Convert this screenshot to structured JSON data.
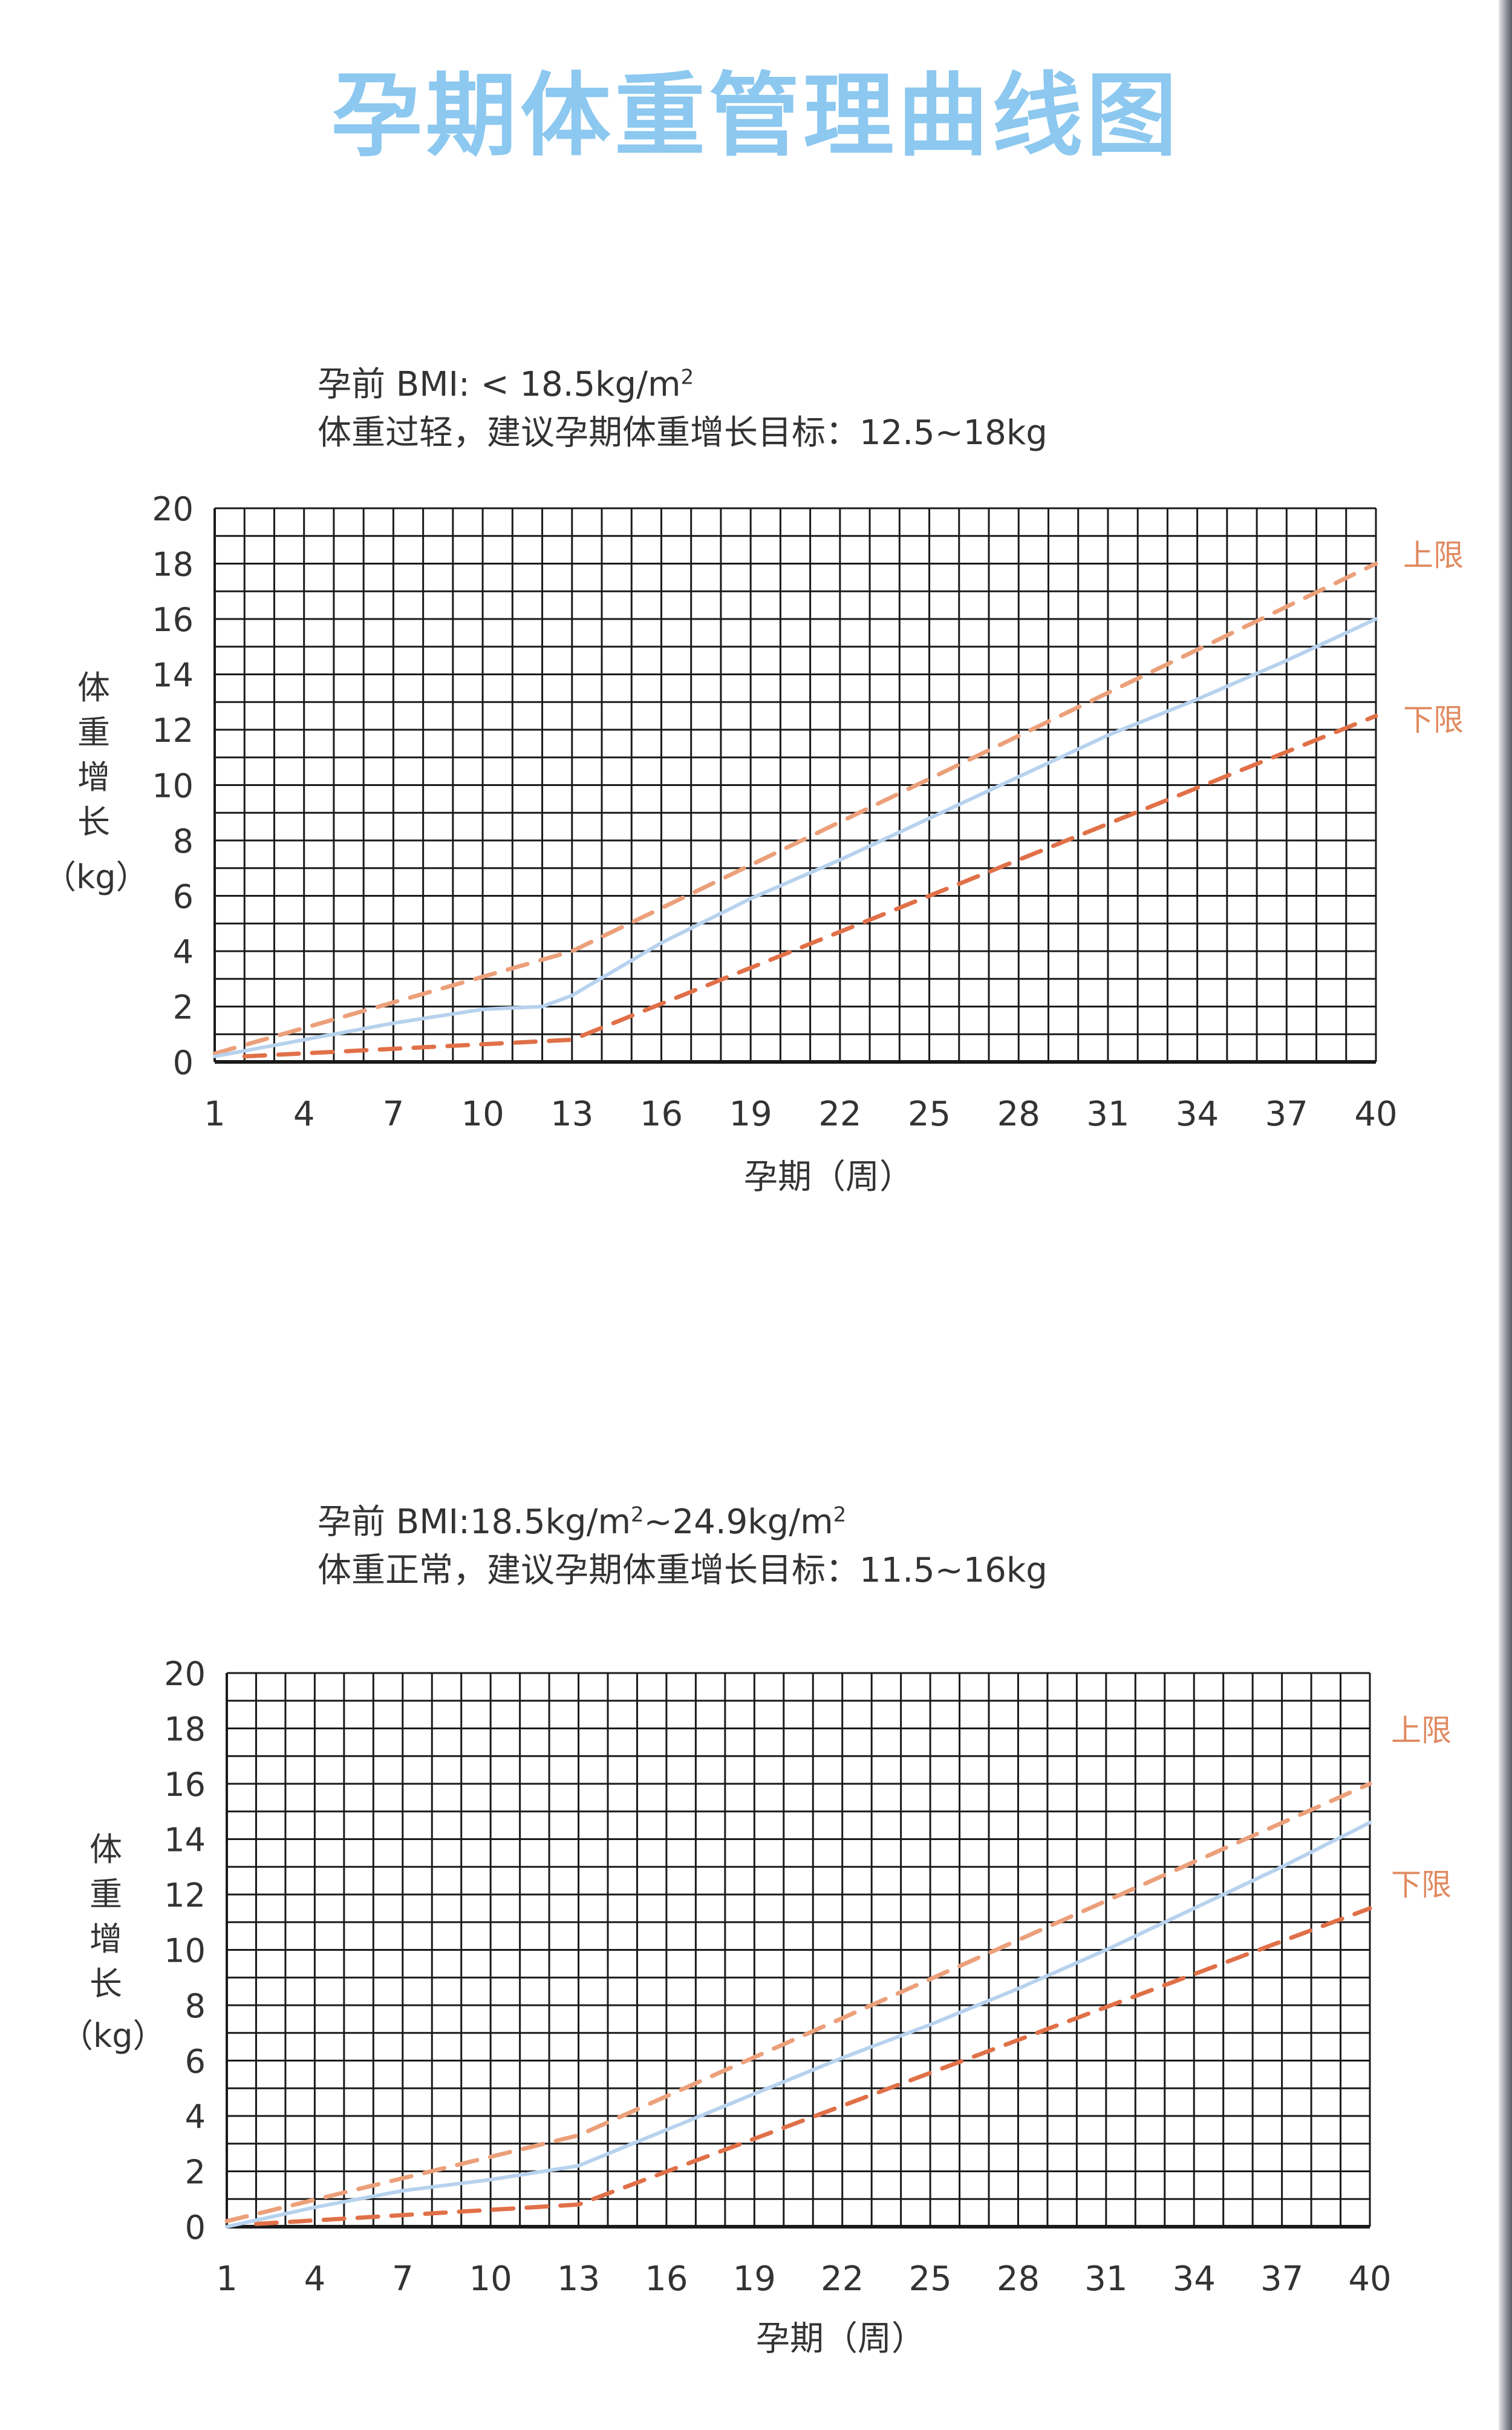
{
  "page": {
    "title": "孕期体重管理曲线图"
  },
  "charts": [
    {
      "note_bmi_prefix": "孕前 BMI: < 18.5kg/m",
      "note_bmi_sup": "2",
      "note_bmi_suffix": "",
      "note_line2": "体重过轻，建议孕期体重增长目标：12.5~18kg",
      "ylabel": "体重增长",
      "yunit": "（kg）",
      "xlabel": "孕期（周）",
      "upper_label": "上限",
      "lower_label": "下限"
    },
    {
      "note_bmi_prefix": "孕前 BMI:18.5kg/m",
      "note_bmi_sup": "2",
      "note_bmi_suffix": "~24.9kg/m",
      "note_bmi_sup2": "2",
      "note_line2": "体重正常，建议孕期体重增长目标：11.5~16kg",
      "ylabel": "体重增长",
      "yunit": "（kg）",
      "xlabel": "孕期（周）",
      "upper_label": "上限",
      "lower_label": "下限"
    }
  ],
  "colors": {
    "grid": "#1a1a1a",
    "upper": "#eba07a",
    "lower": "#e07048",
    "curve": "#b7d2ee",
    "title": "#8cc8ef"
  },
  "chart_data": [
    {
      "type": "line",
      "title": "孕前 BMI: < 18.5kg/m2",
      "xlabel": "孕期（周）",
      "ylabel": "体重增长（kg）",
      "xlim": [
        1,
        40
      ],
      "ylim": [
        0,
        20
      ],
      "x_ticks": [
        1,
        4,
        7,
        10,
        13,
        16,
        19,
        22,
        25,
        28,
        31,
        34,
        37,
        40
      ],
      "y_ticks": [
        0,
        2,
        4,
        6,
        8,
        10,
        12,
        14,
        16,
        18,
        20
      ],
      "grid": true,
      "series": [
        {
          "name": "上限",
          "style": "dashed",
          "x": [
            1,
            13,
            40
          ],
          "y": [
            0.3,
            4.0,
            18.0
          ]
        },
        {
          "name": "下限",
          "style": "dashed",
          "x": [
            2,
            13,
            40
          ],
          "y": [
            0.2,
            0.8,
            12.5
          ]
        },
        {
          "name": "",
          "style": "solid",
          "x": [
            1,
            4,
            7,
            10,
            12,
            13,
            16,
            19,
            22,
            25,
            28,
            31,
            34,
            37,
            40
          ],
          "y": [
            0.2,
            0.8,
            1.4,
            1.9,
            2.0,
            2.4,
            4.3,
            5.9,
            7.3,
            8.8,
            10.3,
            11.8,
            13.1,
            14.5,
            16.0
          ]
        }
      ]
    },
    {
      "type": "line",
      "title": "孕前 BMI:18.5kg/m2~24.9kg/m2",
      "xlabel": "孕期（周）",
      "ylabel": "体重增长（kg）",
      "xlim": [
        1,
        40
      ],
      "ylim": [
        0,
        20
      ],
      "x_ticks": [
        1,
        4,
        7,
        10,
        13,
        16,
        19,
        22,
        25,
        28,
        31,
        34,
        37,
        40
      ],
      "y_ticks": [
        0,
        2,
        4,
        6,
        8,
        10,
        12,
        14,
        16,
        18,
        20
      ],
      "grid": true,
      "series": [
        {
          "name": "上限",
          "style": "dashed",
          "x": [
            1,
            13,
            40
          ],
          "y": [
            0.2,
            3.3,
            16.0
          ]
        },
        {
          "name": "下限",
          "style": "dashed",
          "x": [
            2,
            13,
            40
          ],
          "y": [
            0.1,
            0.8,
            11.5
          ]
        },
        {
          "name": "",
          "style": "solid",
          "x": [
            1,
            4,
            7,
            10,
            13,
            16,
            19,
            22,
            25,
            28,
            31,
            34,
            37,
            40
          ],
          "y": [
            0.0,
            0.7,
            1.3,
            1.7,
            2.2,
            3.5,
            4.8,
            6.1,
            7.3,
            8.6,
            10.0,
            11.5,
            13.0,
            14.6
          ]
        }
      ]
    }
  ]
}
